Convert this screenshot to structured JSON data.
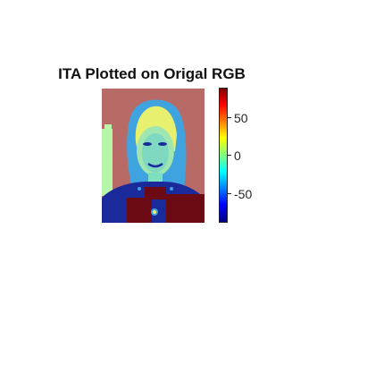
{
  "figure": {
    "title": "ITA Plotted on Origal RGB"
  },
  "colorbar": {
    "colormap": "jet",
    "ticks": [
      "50",
      "0",
      "-50"
    ],
    "tick_values": [
      50,
      0,
      -50
    ],
    "range": [
      -90,
      90
    ]
  },
  "colors": {
    "background_region": "#b86a66",
    "skin_region": "#7fe0c0",
    "hair_region": "#3fa3df",
    "clothing_region": "#1b2a9a",
    "dark_region": "#6b0a12",
    "highlight_region": "#b7f5a8"
  }
}
